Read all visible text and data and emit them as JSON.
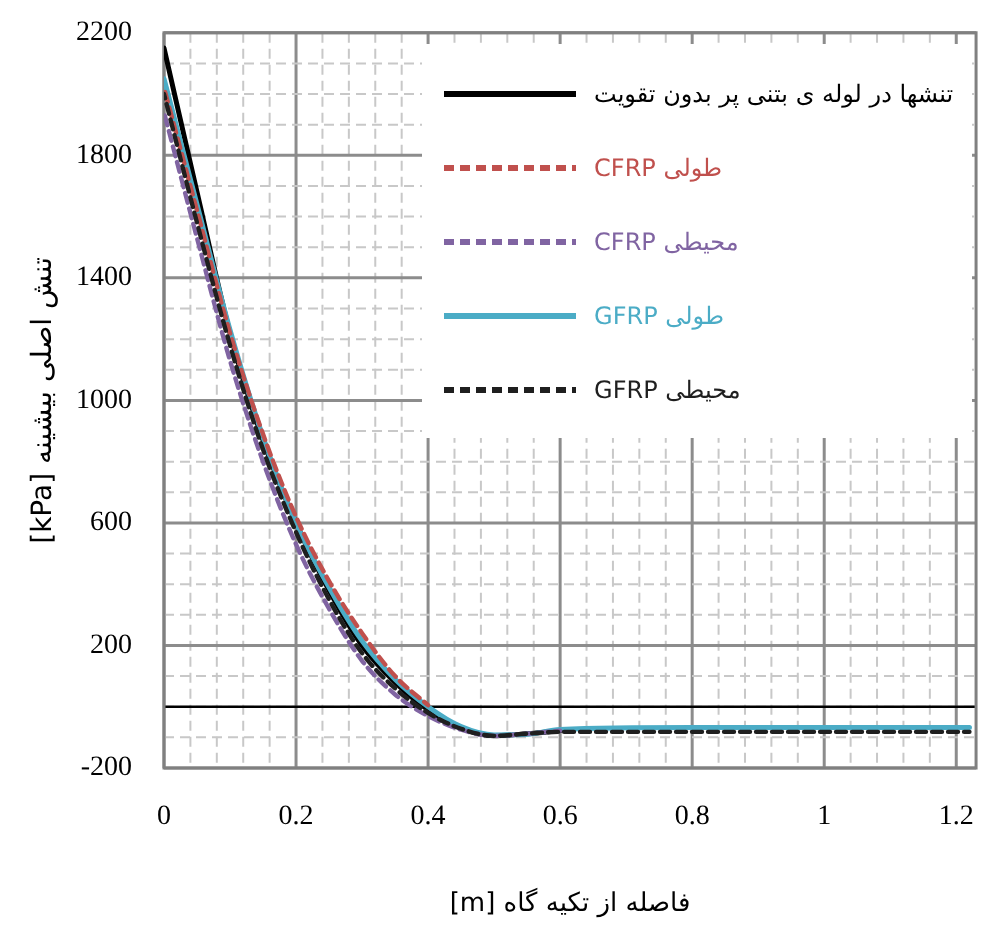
{
  "chart_data": {
    "type": "line",
    "xlabel": "فاصله از تکیه گاه [m]",
    "ylabel": "تنش اصلی بیشینه [kPa]",
    "x": [
      0,
      0.05,
      0.1,
      0.15,
      0.2,
      0.25,
      0.3,
      0.35,
      0.4,
      0.45,
      0.5,
      0.55,
      0.6,
      0.8,
      1.0,
      1.22
    ],
    "series": [
      {
        "name": "تنشها در لوله ی بتنی پر بدون تقویت",
        "color": "#000000",
        "line_style": "solid",
        "values": [
          2150,
          1680,
          1220,
          870,
          600,
          380,
          200,
          80,
          -10,
          -70,
          -95,
          -88,
          -78,
          null,
          null,
          null
        ]
      },
      {
        "name": "CFRP طولی",
        "color": "#c0504d",
        "line_style": "dashed",
        "values": [
          2020,
          1620,
          1220,
          890,
          620,
          410,
          240,
          100,
          5,
          null,
          null,
          null,
          null,
          null,
          null,
          null
        ]
      },
      {
        "name": "CFRP محیطی",
        "color": "#8064a2",
        "line_style": "dashed",
        "values": [
          1940,
          1530,
          1130,
          800,
          530,
          320,
          150,
          40,
          -30,
          -75,
          -95,
          -88,
          -78,
          null,
          null,
          null
        ]
      },
      {
        "name": "GFRP طولی",
        "color": "#4bacc6",
        "line_style": "solid",
        "values": [
          2050,
          1640,
          1230,
          880,
          600,
          390,
          215,
          90,
          0,
          -65,
          -92,
          -90,
          -74,
          -68,
          -68,
          -68
        ]
      },
      {
        "name": "GFRP محیطی",
        "color": "#1f1f1f",
        "line_style": "dashed",
        "values": [
          2000,
          1580,
          1180,
          840,
          570,
          350,
          175,
          60,
          -20,
          -72,
          -95,
          -88,
          -82,
          -82,
          -82,
          -82
        ]
      }
    ],
    "xlim": [
      0,
      1.23
    ],
    "xticks": [
      0,
      {
        "value": 0.04,
        "label": null
      },
      {
        "value": 0.08,
        "label": null
      },
      {
        "value": 0.12,
        "label": null
      },
      {
        "value": 0.16,
        "label": null
      },
      0.2,
      {
        "value": 0.24,
        "label": null
      },
      {
        "value": 0.28,
        "label": null
      },
      {
        "value": 0.32,
        "label": null
      },
      {
        "value": 0.36,
        "label": null
      },
      0.4,
      {
        "value": 0.44,
        "label": null
      },
      {
        "value": 0.48,
        "label": null
      },
      {
        "value": 0.52,
        "label": null
      },
      {
        "value": 0.56,
        "label": null
      },
      0.6,
      {
        "value": 0.64,
        "label": null
      },
      {
        "value": 0.68,
        "label": null
      },
      {
        "value": 0.72,
        "label": null
      },
      {
        "value": 0.76,
        "label": null
      },
      0.8,
      {
        "value": 0.84,
        "label": null
      },
      {
        "value": 0.88,
        "label": null
      },
      {
        "value": 0.92,
        "label": null
      },
      {
        "value": 0.96,
        "label": null
      },
      1,
      {
        "value": 1.04,
        "label": null
      },
      {
        "value": 1.08,
        "label": null
      },
      {
        "value": 1.12,
        "label": null
      },
      {
        "value": 1.16,
        "label": null
      },
      1.2
    ],
    "ylim": [
      -200,
      2200
    ],
    "yticks": [
      -200,
      {
        "value": -100,
        "label": null
      },
      {
        "value": 0,
        "label": null
      },
      {
        "value": 100,
        "label": null
      },
      200,
      {
        "value": 300,
        "label": null
      },
      {
        "value": 400,
        "label": null
      },
      {
        "value": 500,
        "label": null
      },
      600,
      {
        "value": 700,
        "label": null
      },
      {
        "value": 800,
        "label": null
      },
      {
        "value": 900,
        "label": null
      },
      1000,
      {
        "value": 1100,
        "label": null
      },
      {
        "value": 1200,
        "label": null
      },
      {
        "value": 1300,
        "label": null
      },
      1400,
      {
        "value": 1500,
        "label": null
      },
      {
        "value": 1600,
        "label": null
      },
      {
        "value": 1700,
        "label": null
      },
      1800,
      {
        "value": 1900,
        "label": null
      },
      {
        "value": 2000,
        "label": null
      },
      {
        "value": 2100,
        "label": null
      },
      2200
    ],
    "ref_lines": [
      {
        "axis": "y",
        "value": 0,
        "color": "#000000"
      }
    ],
    "grid": true,
    "legend": "top right",
    "marker": "none"
  }
}
